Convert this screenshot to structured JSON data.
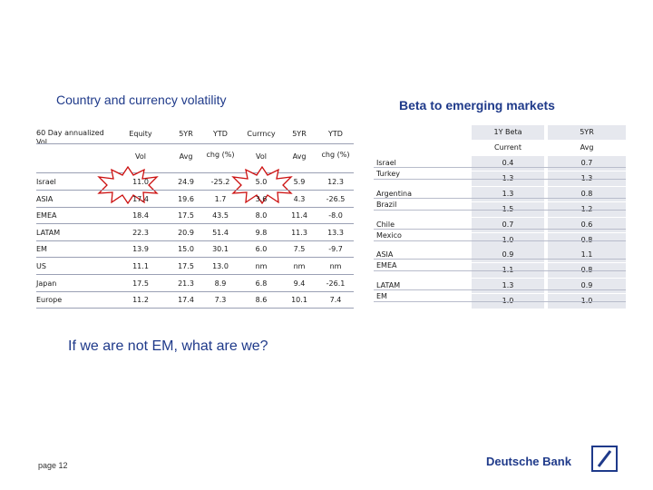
{
  "left_title": "Country and currency volatility",
  "right_title": "Beta to emerging markets",
  "left_table": {
    "corner_label_line1": "60 Day annualized",
    "corner_label_line2": "Vol",
    "group_headers": [
      "Equity",
      "5YR",
      "YTD",
      "Currncy",
      "5YR",
      "YTD"
    ],
    "sub_headers": [
      "Vol",
      "Avg",
      "chg (%)",
      "Vol",
      "Avg",
      "chg (%)"
    ],
    "rows": [
      {
        "label": "Israel",
        "values": [
          "11.0",
          "24.9",
          "-25.2",
          "5.0",
          "5.9",
          "12.3"
        ]
      },
      {
        "label": "ASIA",
        "values": [
          "17.4",
          "19.6",
          "1.7",
          "3.6",
          "4.3",
          "-26.5"
        ]
      },
      {
        "label": "EMEA",
        "values": [
          "18.4",
          "17.5",
          "43.5",
          "8.0",
          "11.4",
          "-8.0"
        ]
      },
      {
        "label": "LATAM",
        "values": [
          "22.3",
          "20.9",
          "51.4",
          "9.8",
          "11.3",
          "13.3"
        ]
      },
      {
        "label": "EM",
        "values": [
          "13.9",
          "15.0",
          "30.1",
          "6.0",
          "7.5",
          "-9.7"
        ]
      },
      {
        "label": "US",
        "values": [
          "11.1",
          "17.5",
          "13.0",
          "nm",
          "nm",
          "nm"
        ]
      },
      {
        "label": "Japan",
        "values": [
          "17.5",
          "21.3",
          "8.9",
          "6.8",
          "9.4",
          "-26.1"
        ]
      },
      {
        "label": "Europe",
        "values": [
          "11.2",
          "17.4",
          "7.3",
          "8.6",
          "10.1",
          "7.4"
        ]
      }
    ]
  },
  "right_table": {
    "group_headers": [
      "1Y Beta",
      "5YR"
    ],
    "sub_headers": [
      "Current",
      "Avg"
    ],
    "rows": [
      {
        "label": "Israel",
        "values": [
          "0.4",
          "0.7"
        ]
      },
      {
        "label": "Turkey",
        "values": [
          "1.3",
          "1.3"
        ]
      },
      {
        "label": "Argentina",
        "values": [
          "1.3",
          "0.8"
        ]
      },
      {
        "label": "Brazil",
        "values": [
          "1.5",
          "1.2"
        ]
      },
      {
        "label": "Chile",
        "values": [
          "0.7",
          "0.6"
        ]
      },
      {
        "label": "Mexico",
        "values": [
          "1.0",
          "0.8"
        ]
      },
      {
        "label": "ASIA",
        "values": [
          "0.9",
          "1.1"
        ]
      },
      {
        "label": "EMEA",
        "values": [
          "1.1",
          "0.8"
        ]
      },
      {
        "label": "LATAM",
        "values": [
          "1.3",
          "0.9"
        ]
      },
      {
        "label": "EM",
        "values": [
          "1.0",
          "1.0"
        ]
      }
    ]
  },
  "question": "If we are not EM, what are we?",
  "page_label": "page 12",
  "brand_name": "Deutsche Bank",
  "colors": {
    "title_blue": "#1f3a8a",
    "shade": "#e6e8ee",
    "burst_fill": "#ffffff",
    "burst_stroke": "#cc1010"
  }
}
